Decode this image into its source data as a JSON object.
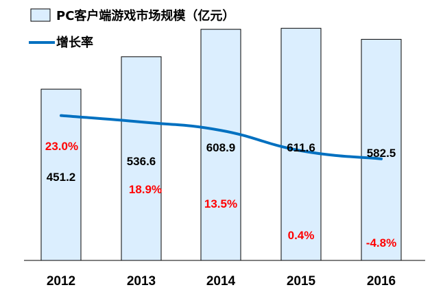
{
  "chart_data": {
    "type": "bar",
    "categories": [
      "2012",
      "2013",
      "2014",
      "2015",
      "2016"
    ],
    "series": [
      {
        "name": "PC客户端游戏市场规模（亿元）",
        "type": "bar",
        "values": [
          451.2,
          536.6,
          608.9,
          611.6,
          582.5
        ],
        "labels": [
          "451.2",
          "536.6",
          "608.9",
          "611.6",
          "582.5"
        ],
        "color": "#dbeefe"
      },
      {
        "name": "增长率",
        "type": "line",
        "values": [
          23.0,
          18.9,
          13.5,
          0.4,
          -4.8
        ],
        "labels": [
          "23.0%",
          "18.9%",
          "13.5%",
          "0.4%",
          "-4.8%"
        ],
        "color": "#0070c0",
        "label_color": "#ff0000"
      }
    ],
    "y_bar_range": [
      0,
      650
    ],
    "y_line_range": [
      -70,
      40
    ],
    "grid": false,
    "legend_position": "top-left"
  }
}
